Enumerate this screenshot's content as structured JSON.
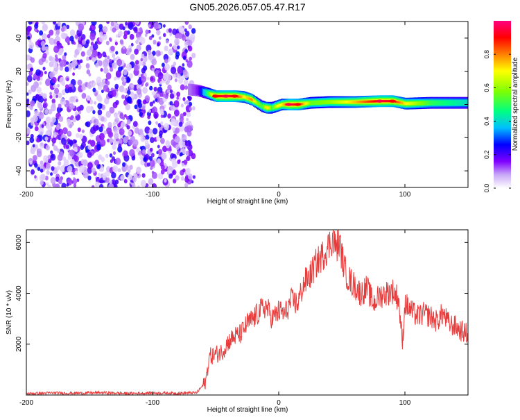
{
  "title": "GN05.2026.057.05.47.R17",
  "chart_data": [
    {
      "type": "heatmap",
      "xlabel": "Height of straight line (km)",
      "ylabel": "Frequency (Hz)",
      "xlim": [
        -200,
        150
      ],
      "ylim": [
        -50,
        50
      ],
      "x_ticks": [
        -200,
        -100,
        0,
        100
      ],
      "y_ticks": [
        -40,
        -20,
        0,
        20,
        40
      ],
      "noise_region_x": [
        -200,
        -67
      ],
      "ridge": {
        "x": [
          -72,
          -65,
          -58,
          -50,
          -42,
          -35,
          -28,
          -22,
          -18,
          -14,
          -10,
          -6,
          -2,
          2,
          8,
          15,
          25,
          40,
          60,
          80,
          90,
          100,
          120,
          150
        ],
        "y": [
          9,
          8.5,
          7,
          5,
          5,
          5,
          4.5,
          3,
          1,
          -1,
          -2,
          -2,
          -1,
          0,
          0,
          0,
          1,
          1.5,
          1.5,
          2,
          2,
          0.5,
          1,
          1
        ],
        "amplitude": [
          0.1,
          0.15,
          0.45,
          0.9,
          0.95,
          0.9,
          0.7,
          0.8,
          0.6,
          0.5,
          0.75,
          0.5,
          0.7,
          0.7,
          0.95,
          0.9,
          0.55,
          0.6,
          0.75,
          0.95,
          0.9,
          0.7,
          0.5,
          0.4
        ]
      },
      "colorbar": {
        "label": "Normalized spectral amplitude",
        "ticks": [
          0.0,
          0.2,
          0.4,
          0.6,
          0.8
        ],
        "range": [
          0,
          1
        ],
        "colors": [
          "#ffffff",
          "#7f00ff",
          "#0000ff",
          "#00bfff",
          "#00ff80",
          "#80ff00",
          "#ffff00",
          "#ff8000",
          "#ff0000",
          "#ff0080"
        ]
      }
    },
    {
      "type": "line",
      "xlabel": "Height of straight line (km)",
      "ylabel": "SNR (10 * v/v)",
      "xlim": [
        -200,
        150
      ],
      "ylim": [
        0,
        6500
      ],
      "x_ticks": [
        -200,
        -100,
        0,
        100
      ],
      "y_ticks": [
        2000,
        4000,
        6000
      ],
      "color": "#e83c3c",
      "series": [
        {
          "x": [
            -200,
            -180,
            -160,
            -140,
            -120,
            -100,
            -80,
            -65,
            -58,
            -55,
            -50,
            -45,
            -40,
            -35,
            -30,
            -25,
            -20,
            -15,
            -10,
            -5,
            0,
            5,
            10,
            15,
            20,
            25,
            30,
            35,
            40,
            43,
            45,
            48,
            52,
            55,
            60,
            65,
            70,
            75,
            80,
            85,
            90,
            95,
            98,
            100,
            105,
            110,
            115,
            120,
            125,
            130,
            135,
            140,
            145,
            150
          ],
          "y": [
            50,
            80,
            70,
            90,
            60,
            80,
            70,
            90,
            500,
            1500,
            1600,
            1700,
            2100,
            2300,
            2400,
            2800,
            3000,
            3300,
            3500,
            3000,
            3300,
            3200,
            3700,
            3600,
            4400,
            4700,
            5200,
            5500,
            5900,
            6200,
            5800,
            6000,
            5000,
            4600,
            4300,
            4000,
            4200,
            3600,
            3900,
            4000,
            4100,
            3800,
            2000,
            3600,
            3300,
            3100,
            3200,
            3100,
            2900,
            3200,
            2800,
            2700,
            2500,
            2400
          ]
        }
      ]
    }
  ]
}
